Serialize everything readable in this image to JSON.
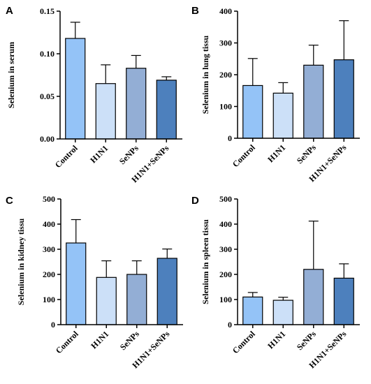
{
  "colors": [
    "#94c3f7",
    "#cce0f8",
    "#93aed5",
    "#4d80bd"
  ],
  "chart_data": [
    {
      "panel": "A",
      "type": "bar",
      "categories": [
        "Control",
        "H1N1",
        "SeNPs",
        "H1N1+SeNPs"
      ],
      "values": [
        0.118,
        0.065,
        0.083,
        0.069
      ],
      "error": [
        0.019,
        0.022,
        0.015,
        0.004
      ],
      "ylabel": "Selenium in serum",
      "ylim": [
        0,
        0.15
      ],
      "yticks": [
        0.0,
        0.05,
        0.1,
        0.15
      ],
      "ytick_labels": [
        "0.00",
        "0.05",
        "0.10",
        "0.15"
      ]
    },
    {
      "panel": "B",
      "type": "bar",
      "categories": [
        "Control",
        "H1N1",
        "SeNPs",
        "H1N1+SeNPs"
      ],
      "values": [
        166,
        142,
        230,
        247
      ],
      "error": [
        85,
        33,
        63,
        123
      ],
      "ylabel": "Selenium in lung tissu",
      "ylim": [
        0,
        400
      ],
      "yticks": [
        0,
        100,
        200,
        300,
        400
      ],
      "ytick_labels": [
        "0",
        "100",
        "200",
        "300",
        "400"
      ]
    },
    {
      "panel": "C",
      "type": "bar",
      "categories": [
        "Control",
        "H1N1",
        "SeNPs",
        "H1N1+SeNPs"
      ],
      "values": [
        325,
        188,
        200,
        264
      ],
      "error": [
        93,
        66,
        54,
        37
      ],
      "ylabel": "Selenium in kidney tissu",
      "ylim": [
        0,
        500
      ],
      "yticks": [
        0,
        100,
        200,
        300,
        400,
        500
      ],
      "ytick_labels": [
        "0",
        "100",
        "200",
        "300",
        "400",
        "500"
      ]
    },
    {
      "panel": "D",
      "type": "bar",
      "categories": [
        "Control",
        "H1N1",
        "SeNPs",
        "H1N1+SeNPs"
      ],
      "values": [
        110,
        97,
        220,
        185
      ],
      "error": [
        18,
        12,
        192,
        57
      ],
      "ylabel": "Selenium in spleen tissu",
      "ylim": [
        0,
        500
      ],
      "yticks": [
        0,
        100,
        200,
        300,
        400,
        500
      ],
      "ytick_labels": [
        "0",
        "100",
        "200",
        "300",
        "400",
        "500"
      ]
    }
  ]
}
